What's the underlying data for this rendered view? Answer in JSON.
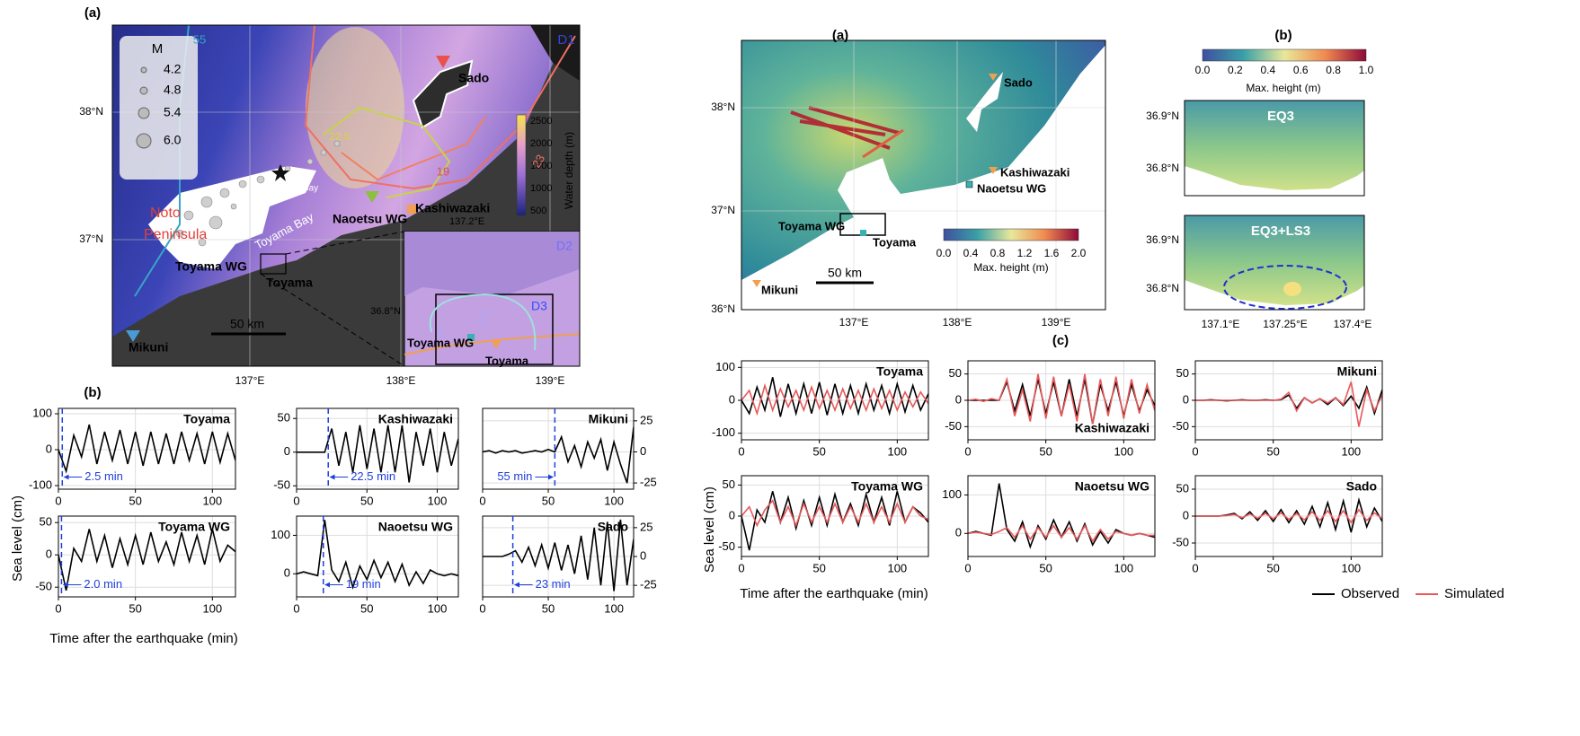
{
  "left": {
    "map": {
      "panel": "(a)",
      "domain1": "D1",
      "legend_title": "M",
      "magnitudes": [
        "4.2",
        "4.8",
        "5.4",
        "6.0"
      ],
      "colorbar_label": "Water depth (m)",
      "colorbar_ticks": [
        "2500",
        "2000",
        "1500",
        "1000",
        "500"
      ],
      "lat_ticks": [
        "38°N",
        "37°N"
      ],
      "lon_ticks": [
        "137°E",
        "138°E",
        "139°E"
      ],
      "places": {
        "sado": "Sado",
        "kashiwazaki": "Kashiwazaki",
        "naoetsu": "Naoetsu WG",
        "toyama_wg": "Toyama WG",
        "toyama": "Toyama",
        "mikuni": "Mikuni",
        "iida": "Iida Bay",
        "noto": "Noto",
        "peninsula": "Peninsula",
        "bay": "Toyama Bay"
      },
      "scale": "50 km",
      "contours": [
        "55",
        "23",
        "19",
        "22.5"
      ],
      "inset": {
        "domain2": "D2",
        "domain3": "D3",
        "lat": "36.8°N",
        "lon": "137.2°E",
        "toyama_wg": "Toyama WG",
        "toyama": "Toyama",
        "contours": [
          "2.5",
          "2"
        ]
      }
    },
    "panel_b": "(b)",
    "y_label": "Sea level (cm)",
    "x_label": "Time after the earthquake (min)"
  },
  "right": {
    "map": {
      "panel": "(a)",
      "places": {
        "sado": "Sado",
        "kashiwazaki": "Kashiwazaki",
        "naoetsu": "Naoetsu WG",
        "toyama_wg": "Toyama WG",
        "toyama": "Toyama",
        "mikuni": "Mikuni"
      },
      "scale": "50 km",
      "lat_ticks": [
        "38°N",
        "37°N",
        "36°N"
      ],
      "lon_ticks": [
        "137°E",
        "138°E",
        "139°E"
      ],
      "colorbar_ticks": [
        "0.0",
        "0.4",
        "0.8",
        "1.2",
        "1.6",
        "2.0"
      ],
      "colorbar_label": "Max. height (m)"
    },
    "map_b": {
      "panel": "(b)",
      "colorbar_ticks": [
        "0.0",
        "0.2",
        "0.4",
        "0.6",
        "0.8",
        "1.0"
      ],
      "colorbar_label": "Max. height (m)",
      "eq3": "EQ3",
      "eq3ls3": "EQ3+LS3",
      "lat_top": [
        "36.9°N",
        "36.8°N"
      ],
      "lat_bottom": [
        "36.9°N",
        "36.8°N"
      ],
      "lon_ticks": [
        "137.1°E",
        "137.25°E",
        "137.4°E"
      ]
    },
    "panel_c": "(c)",
    "y_label": "Sea level (cm)",
    "x_label": "Time after the earthquake (min)"
  },
  "chart_data": [
    {
      "type": "line",
      "title": "Toyama",
      "x": [
        0,
        5,
        10,
        15,
        20,
        25,
        30,
        35,
        40,
        45,
        50,
        55,
        60,
        65,
        70,
        75,
        80,
        85,
        90,
        95,
        100,
        105,
        110,
        115
      ],
      "xlim": [
        0,
        115
      ],
      "xticks": [
        0,
        50,
        100
      ],
      "ylim": [
        -110,
        115
      ],
      "yticks": [
        -100,
        0,
        100
      ],
      "grid": true,
      "y_axis_side": "left",
      "color": "#000000",
      "values": [
        0,
        -60,
        40,
        -20,
        70,
        -40,
        50,
        -30,
        55,
        -40,
        50,
        -45,
        50,
        -40,
        45,
        -40,
        50,
        -30,
        45,
        -40,
        50,
        -35,
        45,
        -30
      ],
      "arrival": 2.5,
      "arrival_label": "2.5 min",
      "arrival_color": "#1f3fdb",
      "arrival_label_side": "right"
    },
    {
      "type": "line",
      "title": "Kashiwazaki",
      "x": [
        0,
        5,
        10,
        15,
        20,
        25,
        30,
        35,
        40,
        45,
        50,
        55,
        60,
        65,
        70,
        75,
        80,
        85,
        90,
        95,
        100,
        105,
        110,
        115
      ],
      "xlim": [
        0,
        115
      ],
      "xticks": [
        0,
        50,
        100
      ],
      "ylim": [
        -55,
        65
      ],
      "yticks": [
        -50,
        0,
        50
      ],
      "grid": true,
      "y_axis_side": "left",
      "color": "#000000",
      "values": [
        0,
        0,
        0,
        0,
        0,
        35,
        -20,
        30,
        -30,
        40,
        -25,
        35,
        -30,
        40,
        -30,
        40,
        -45,
        30,
        -20,
        35,
        -30,
        30,
        -20,
        20
      ],
      "arrival": 22.5,
      "arrival_label": "22.5 min",
      "arrival_color": "#1f3fdb",
      "arrival_label_side": "right"
    },
    {
      "type": "line",
      "title": "Mikuni",
      "x": [
        0,
        5,
        10,
        15,
        20,
        25,
        30,
        35,
        40,
        45,
        50,
        55,
        60,
        65,
        70,
        75,
        80,
        85,
        90,
        95,
        100,
        105,
        110,
        115
      ],
      "xlim": [
        0,
        115
      ],
      "xticks": [
        0,
        50,
        100
      ],
      "ylim": [
        -30,
        35
      ],
      "yticks": [
        -25,
        0,
        25
      ],
      "grid": true,
      "y_axis_side": "right",
      "color": "#000000",
      "values": [
        0,
        1,
        -1,
        1,
        0,
        1,
        -1,
        0,
        1,
        0,
        2,
        0,
        12,
        -8,
        5,
        -12,
        8,
        -5,
        10,
        -15,
        8,
        -10,
        -25,
        20
      ],
      "arrival": 55,
      "arrival_label": "55 min",
      "arrival_color": "#1f3fdb",
      "arrival_label_side": "left"
    },
    {
      "type": "line",
      "title": "Toyama WG",
      "x": [
        0,
        5,
        10,
        15,
        20,
        25,
        30,
        35,
        40,
        45,
        50,
        55,
        60,
        65,
        70,
        75,
        80,
        85,
        90,
        95,
        100,
        105,
        110,
        115
      ],
      "xlim": [
        0,
        115
      ],
      "xticks": [
        0,
        50,
        100
      ],
      "ylim": [
        -65,
        60
      ],
      "yticks": [
        -50,
        0,
        50
      ],
      "grid": true,
      "y_axis_side": "left",
      "color": "#000000",
      "values": [
        0,
        -55,
        10,
        -10,
        40,
        -10,
        30,
        -20,
        25,
        -15,
        30,
        -15,
        35,
        -10,
        20,
        -15,
        35,
        -10,
        30,
        -15,
        40,
        -10,
        15,
        5
      ],
      "arrival": 2.0,
      "arrival_label": "2.0 min",
      "arrival_color": "#1f3fdb",
      "arrival_label_side": "right"
    },
    {
      "type": "line",
      "title": "Naoetsu WG",
      "x": [
        0,
        5,
        10,
        15,
        20,
        25,
        30,
        35,
        40,
        45,
        50,
        55,
        60,
        65,
        70,
        75,
        80,
        85,
        90,
        95,
        100,
        105,
        110,
        115
      ],
      "xlim": [
        0,
        115
      ],
      "xticks": [
        0,
        50,
        100
      ],
      "ylim": [
        -60,
        150
      ],
      "yticks": [
        0,
        100
      ],
      "grid": true,
      "y_axis_side": "left",
      "color": "#000000",
      "values": [
        0,
        5,
        0,
        -5,
        140,
        10,
        -20,
        30,
        -35,
        20,
        -15,
        35,
        -10,
        30,
        -20,
        25,
        -30,
        5,
        -25,
        10,
        0,
        -5,
        0,
        -5
      ],
      "arrival": 19,
      "arrival_label": "19 min",
      "arrival_color": "#1f3fdb",
      "arrival_label_side": "right"
    },
    {
      "type": "line",
      "title": "Sado",
      "x": [
        0,
        5,
        10,
        15,
        20,
        25,
        30,
        35,
        40,
        45,
        50,
        55,
        60,
        65,
        70,
        75,
        80,
        85,
        90,
        95,
        100,
        105,
        110,
        115
      ],
      "xlim": [
        0,
        115
      ],
      "xticks": [
        0,
        50,
        100
      ],
      "ylim": [
        -35,
        35
      ],
      "yticks": [
        -25,
        0,
        25
      ],
      "grid": true,
      "y_axis_side": "right",
      "color": "#000000",
      "values": [
        0,
        0,
        0,
        0,
        2,
        5,
        -5,
        8,
        -8,
        10,
        -10,
        12,
        -12,
        10,
        -15,
        18,
        -20,
        25,
        -25,
        30,
        -30,
        32,
        -25,
        15
      ],
      "arrival": 23,
      "arrival_label": "23 min",
      "arrival_color": "#1f3fdb",
      "arrival_label_side": "right"
    },
    {
      "type": "line",
      "title": "Toyama",
      "title_position": "top-right",
      "x": [
        0,
        5,
        10,
        15,
        20,
        25,
        30,
        35,
        40,
        45,
        50,
        55,
        60,
        65,
        70,
        75,
        80,
        85,
        90,
        95,
        100,
        105,
        110,
        115,
        120
      ],
      "xlim": [
        0,
        120
      ],
      "xticks": [
        0,
        50,
        100
      ],
      "ylim": [
        -120,
        120
      ],
      "yticks": [
        -100,
        0,
        100
      ],
      "grid": true,
      "y_axis_side": "left",
      "series": [
        {
          "name": "Observed",
          "color": "#000000",
          "values": [
            0,
            -40,
            40,
            -30,
            70,
            -50,
            50,
            -40,
            50,
            -40,
            55,
            -45,
            50,
            -40,
            45,
            -40,
            50,
            -30,
            45,
            -40,
            50,
            -35,
            45,
            -30,
            20
          ]
        },
        {
          "name": "Simulated",
          "color": "#e8585a",
          "values": [
            0,
            30,
            -40,
            45,
            -30,
            35,
            -20,
            30,
            -30,
            40,
            -25,
            30,
            -30,
            35,
            -25,
            30,
            -30,
            35,
            -25,
            30,
            -30,
            25,
            -20,
            25,
            -10
          ]
        }
      ]
    },
    {
      "type": "line",
      "title": "Kashiwazaki",
      "title_position": "bottom-right",
      "x": [
        0,
        5,
        10,
        15,
        20,
        25,
        30,
        35,
        40,
        45,
        50,
        55,
        60,
        65,
        70,
        75,
        80,
        85,
        90,
        95,
        100,
        105,
        110,
        115,
        120
      ],
      "xlim": [
        0,
        120
      ],
      "xticks": [
        0,
        50,
        100
      ],
      "ylim": [
        -75,
        75
      ],
      "yticks": [
        -50,
        0,
        50
      ],
      "grid": true,
      "y_axis_side": "left",
      "series": [
        {
          "name": "Observed",
          "color": "#000000",
          "values": [
            0,
            0,
            0,
            0,
            0,
            35,
            -20,
            30,
            -30,
            40,
            -25,
            35,
            -30,
            40,
            -30,
            40,
            -45,
            30,
            -20,
            35,
            -30,
            30,
            -20,
            20,
            -10
          ]
        },
        {
          "name": "Simulated",
          "color": "#e8585a",
          "values": [
            0,
            2,
            -2,
            3,
            0,
            40,
            -30,
            20,
            -40,
            50,
            -35,
            45,
            -30,
            30,
            -40,
            50,
            -45,
            40,
            -30,
            45,
            -35,
            40,
            -25,
            30,
            -20
          ]
        }
      ]
    },
    {
      "type": "line",
      "title": "Mikuni",
      "title_position": "top-right",
      "x": [
        0,
        5,
        10,
        15,
        20,
        25,
        30,
        35,
        40,
        45,
        50,
        55,
        60,
        65,
        70,
        75,
        80,
        85,
        90,
        95,
        100,
        105,
        110,
        115,
        120
      ],
      "xlim": [
        0,
        120
      ],
      "xticks": [
        0,
        50,
        100
      ],
      "ylim": [
        -75,
        75
      ],
      "yticks": [
        -50,
        0,
        50
      ],
      "grid": true,
      "y_axis_side": "left",
      "series": [
        {
          "name": "Observed",
          "color": "#000000",
          "values": [
            0,
            0,
            1,
            0,
            -1,
            0,
            1,
            0,
            0,
            1,
            0,
            1,
            10,
            -15,
            5,
            -5,
            3,
            -8,
            5,
            -10,
            8,
            -15,
            25,
            -25,
            20
          ]
        },
        {
          "name": "Simulated",
          "color": "#e8585a",
          "values": [
            0,
            0,
            0,
            0,
            0,
            0,
            0,
            0,
            0,
            0,
            0,
            2,
            15,
            -20,
            5,
            -5,
            3,
            -5,
            5,
            -8,
            35,
            -50,
            20,
            -20,
            10
          ]
        }
      ]
    },
    {
      "type": "line",
      "title": "Toyama WG",
      "title_position": "top-right",
      "x": [
        0,
        5,
        10,
        15,
        20,
        25,
        30,
        35,
        40,
        45,
        50,
        55,
        60,
        65,
        70,
        75,
        80,
        85,
        90,
        95,
        100,
        105,
        110,
        115,
        120
      ],
      "xlim": [
        0,
        120
      ],
      "xticks": [
        0,
        50,
        100
      ],
      "ylim": [
        -65,
        65
      ],
      "yticks": [
        -50,
        0,
        50
      ],
      "grid": true,
      "y_axis_side": "left",
      "series": [
        {
          "name": "Observed",
          "color": "#000000",
          "values": [
            0,
            -55,
            10,
            -10,
            40,
            -10,
            30,
            -20,
            25,
            -15,
            30,
            -15,
            35,
            -10,
            20,
            -15,
            35,
            -10,
            30,
            -15,
            40,
            -10,
            15,
            5,
            -10
          ]
        },
        {
          "name": "Simulated",
          "color": "#e8585a",
          "values": [
            0,
            15,
            -15,
            10,
            25,
            -10,
            15,
            -15,
            20,
            -10,
            15,
            -10,
            20,
            -10,
            15,
            -10,
            20,
            -10,
            15,
            -10,
            20,
            -10,
            15,
            0,
            -5
          ]
        }
      ]
    },
    {
      "type": "line",
      "title": "Naoetsu WG",
      "title_position": "top-right",
      "x": [
        0,
        5,
        10,
        15,
        20,
        25,
        30,
        35,
        40,
        45,
        50,
        55,
        60,
        65,
        70,
        75,
        80,
        85,
        90,
        95,
        100,
        105,
        110,
        115,
        120
      ],
      "xlim": [
        0,
        120
      ],
      "xticks": [
        0,
        50,
        100
      ],
      "ylim": [
        -60,
        150
      ],
      "yticks": [
        0,
        100
      ],
      "grid": true,
      "y_axis_side": "left",
      "series": [
        {
          "name": "Observed",
          "color": "#000000",
          "values": [
            0,
            5,
            0,
            -5,
            130,
            10,
            -20,
            30,
            -35,
            20,
            -15,
            35,
            -10,
            30,
            -20,
            25,
            -30,
            5,
            -25,
            10,
            0,
            -5,
            0,
            -5,
            -10
          ]
        },
        {
          "name": "Simulated",
          "color": "#e8585a",
          "values": [
            0,
            3,
            0,
            -3,
            5,
            15,
            -10,
            20,
            -15,
            15,
            -10,
            20,
            -10,
            15,
            -15,
            20,
            -20,
            10,
            -15,
            5,
            0,
            -5,
            0,
            -5,
            -5
          ]
        }
      ]
    },
    {
      "type": "line",
      "title": "Sado",
      "title_position": "top-right",
      "x": [
        0,
        5,
        10,
        15,
        20,
        25,
        30,
        35,
        40,
        45,
        50,
        55,
        60,
        65,
        70,
        75,
        80,
        85,
        90,
        95,
        100,
        105,
        110,
        115,
        120
      ],
      "xlim": [
        0,
        120
      ],
      "xticks": [
        0,
        50,
        100
      ],
      "ylim": [
        -75,
        75
      ],
      "yticks": [
        -50,
        0,
        50
      ],
      "grid": true,
      "y_axis_side": "left",
      "series": [
        {
          "name": "Observed",
          "color": "#000000",
          "values": [
            0,
            0,
            0,
            0,
            2,
            5,
            -5,
            8,
            -8,
            10,
            -10,
            12,
            -12,
            10,
            -15,
            18,
            -20,
            25,
            -25,
            28,
            -30,
            30,
            -20,
            15,
            -10
          ]
        },
        {
          "name": "Simulated",
          "color": "#e8585a",
          "values": [
            0,
            0,
            0,
            0,
            1,
            3,
            -3,
            4,
            -4,
            5,
            -5,
            6,
            -6,
            5,
            -7,
            8,
            -8,
            10,
            -10,
            10,
            -12,
            12,
            -8,
            6,
            -5
          ]
        }
      ]
    }
  ]
}
